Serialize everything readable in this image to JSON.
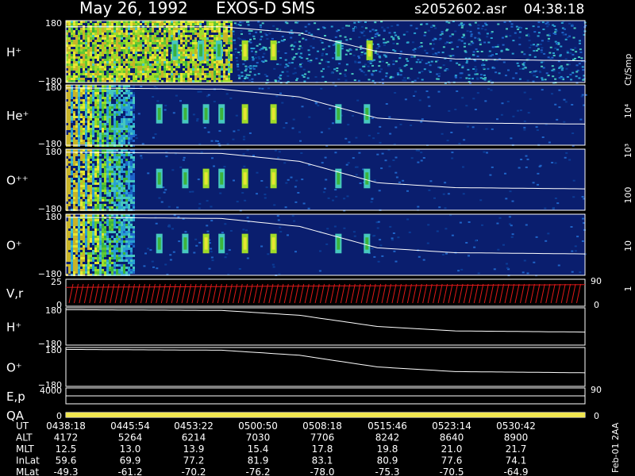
{
  "header": {
    "date": "May 26, 1992",
    "instrument": "EXOS-D SMS",
    "file": "s2052602.asr",
    "time": "04:38:18"
  },
  "colorbar": {
    "unit_label": "Ct/Smp",
    "labels": [
      "1",
      "10",
      "100",
      "10³",
      "10⁴"
    ],
    "colors": [
      "#0a1e6e",
      "#0a3c96",
      "#1e64c8",
      "#28a0d2",
      "#46c8be",
      "#3cb43c",
      "#64c832",
      "#a0dc28",
      "#e6e632",
      "#c8b428",
      "#b48c1e",
      "#8c641e",
      "#e61e1e",
      "#b41414",
      "#780a0a",
      "#ffffff"
    ]
  },
  "footer": {
    "side_label": "Feb-01 2AA",
    "rows": [
      {
        "label": "UT",
        "values": [
          "0438:18",
          "0445:54",
          "0453:22",
          "0500:50",
          "0508:18",
          "0515:46",
          "0523:14",
          "0530:42"
        ]
      },
      {
        "label": "ALT",
        "values": [
          "4172",
          "5264",
          "6214",
          "7030",
          "7706",
          "8242",
          "8640",
          "8900"
        ]
      },
      {
        "label": "MLT",
        "values": [
          "12.5",
          "13.0",
          "13.9",
          "15.4",
          "17.8",
          "19.8",
          "21.0",
          "21.7"
        ]
      },
      {
        "label": "InLat",
        "values": [
          "59.6",
          "69.9",
          "77.2",
          "81.9",
          "83.1",
          "80.9",
          "77.6",
          "74.1"
        ]
      },
      {
        "label": "MLat",
        "values": [
          "-49.3",
          "-61.2",
          "-70.2",
          "-76.2",
          "-78.0",
          "-75.3",
          "-70.5",
          "-64.9"
        ]
      }
    ]
  },
  "chart_data": {
    "type": "heatmap",
    "x_axis": {
      "quantity": "UT",
      "ticks": [
        "0438:18",
        "0445:54",
        "0453:22",
        "0500:50",
        "0508:18",
        "0515:46",
        "0523:14",
        "0530:42"
      ]
    },
    "panels": [
      {
        "id": "h_plus",
        "label": "H⁺",
        "kind": "spectrogram",
        "ymax": "180",
        "ymin": "−180",
        "background": "#0a1e6e",
        "trace": [
          [
            0,
            0.9
          ],
          [
            0.3,
            0.9
          ],
          [
            0.45,
            0.8
          ],
          [
            0.6,
            0.5
          ],
          [
            0.75,
            0.38
          ],
          [
            1,
            0.35
          ]
        ],
        "bursts": [
          0.21,
          0.26,
          0.295,
          0.345,
          0.4,
          0.525,
          0.585
        ],
        "strong": [
          0.27,
          0.345,
          0.4,
          0.585
        ]
      },
      {
        "id": "he_plus",
        "label": "He⁺",
        "kind": "spectrogram",
        "ymax": "180",
        "ymin": "−180",
        "background": "#0a1e6e",
        "trace": [
          [
            0,
            0.95
          ],
          [
            0.3,
            0.93
          ],
          [
            0.45,
            0.8
          ],
          [
            0.6,
            0.45
          ],
          [
            0.75,
            0.37
          ],
          [
            1,
            0.35
          ]
        ],
        "bursts": [
          0.18,
          0.23,
          0.27,
          0.3,
          0.345,
          0.4,
          0.525,
          0.58
        ],
        "strong": [
          0.345,
          0.4
        ]
      },
      {
        "id": "o_plus_plus",
        "label": "O⁺⁺",
        "kind": "spectrogram",
        "ymax": "180",
        "ymin": "−180",
        "background": "#0a1e6e",
        "trace": [
          [
            0,
            0.95
          ],
          [
            0.3,
            0.93
          ],
          [
            0.45,
            0.8
          ],
          [
            0.6,
            0.45
          ],
          [
            0.75,
            0.37
          ],
          [
            1,
            0.35
          ]
        ],
        "bursts": [
          0.18,
          0.23,
          0.27,
          0.3,
          0.345,
          0.4,
          0.525,
          0.58
        ],
        "strong": [
          0.27,
          0.345,
          0.4
        ]
      },
      {
        "id": "o_plus",
        "label": "O⁺",
        "kind": "spectrogram",
        "ymax": "180",
        "ymin": "−180",
        "background": "#0a1e6e",
        "trace": [
          [
            0,
            0.95
          ],
          [
            0.3,
            0.93
          ],
          [
            0.45,
            0.8
          ],
          [
            0.6,
            0.45
          ],
          [
            0.75,
            0.37
          ],
          [
            1,
            0.35
          ]
        ],
        "bursts": [
          0.18,
          0.23,
          0.27,
          0.3,
          0.345,
          0.4,
          0.525,
          0.58
        ],
        "strong": [
          0.27,
          0.345,
          0.4
        ]
      },
      {
        "id": "vr",
        "label": "V,r",
        "kind": "sawtooth",
        "ymax": "25",
        "ymin": "0",
        "right_top": "90",
        "right_bottom": "0",
        "trace": [
          [
            0,
            0.7
          ],
          [
            0.5,
            0.75
          ],
          [
            1,
            0.8
          ]
        ]
      },
      {
        "id": "h_plus_pa",
        "label": "H⁺",
        "kind": "line",
        "ymax": "180",
        "ymin": "−180",
        "trace": [
          [
            0,
            0.95
          ],
          [
            0.3,
            0.93
          ],
          [
            0.45,
            0.8
          ],
          [
            0.6,
            0.5
          ],
          [
            0.75,
            0.38
          ],
          [
            1,
            0.35
          ]
        ]
      },
      {
        "id": "o_plus_pa",
        "label": "O⁺",
        "kind": "line",
        "ymax": "180",
        "ymin": "−180",
        "trace": [
          [
            0,
            0.95
          ],
          [
            0.3,
            0.93
          ],
          [
            0.45,
            0.8
          ],
          [
            0.6,
            0.5
          ],
          [
            0.75,
            0.38
          ],
          [
            1,
            0.35
          ]
        ]
      },
      {
        "id": "ep",
        "label": "E,p",
        "kind": "flat",
        "ymax": "4000",
        "right_top": "90",
        "trace": [
          [
            0,
            0.5
          ],
          [
            1,
            0.5
          ]
        ]
      },
      {
        "id": "qa",
        "label": "QA",
        "kind": "bar",
        "ymin": "0",
        "right_bottom": "0",
        "bar_color": "#f0e650"
      }
    ]
  }
}
